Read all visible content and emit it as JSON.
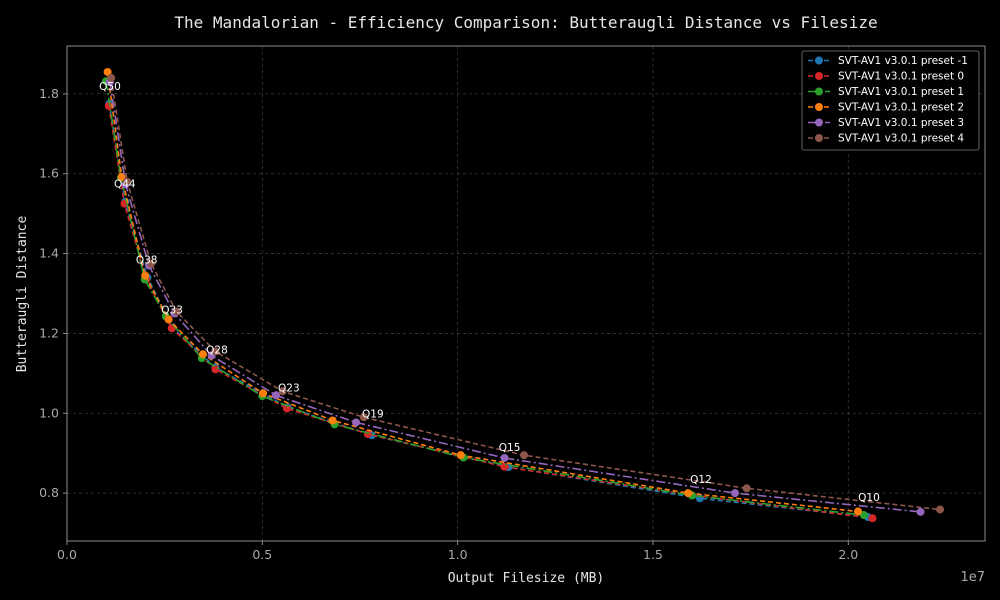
{
  "chart_data": {
    "type": "line",
    "title": "The Mandalorian - Efficiency Comparison: Butteraugli Distance vs Filesize",
    "xlabel": "Output Filesize (MB)",
    "ylabel": "Butteraugli Distance",
    "x_exponent_label": "1e7",
    "xlim": [
      0,
      23500000
    ],
    "ylim": [
      0.68,
      1.92
    ],
    "x_ticks": [
      0,
      5000000,
      10000000,
      15000000,
      20000000
    ],
    "x_tick_labels": [
      "0.0",
      "0.5",
      "1.0",
      "1.5",
      "2.0"
    ],
    "y_ticks": [
      0.8,
      1.0,
      1.2,
      1.4,
      1.6,
      1.8
    ],
    "y_tick_labels": [
      "0.8",
      "1.0",
      "1.2",
      "1.4",
      "1.6",
      "1.8"
    ],
    "grid": true,
    "legend_position": "top-right",
    "series": [
      {
        "name": "SVT-AV1 v3.0.1 preset -1",
        "color": "#1f77b4",
        "dash": "5 3",
        "x": [
          1080000,
          1490000,
          2060000,
          2700000,
          3800000,
          5650000,
          7800000,
          11300000,
          16200000,
          20500000
        ],
        "y": [
          1.775,
          1.53,
          1.34,
          1.215,
          1.115,
          1.015,
          0.945,
          0.865,
          0.787,
          0.74
        ]
      },
      {
        "name": "SVT-AV1 v3.0.1 preset 0",
        "color": "#d62728",
        "dash": "5 3",
        "x": [
          1070000,
          1470000,
          2030000,
          2680000,
          3800000,
          5630000,
          7700000,
          11200000,
          16000000,
          20620000
        ],
        "y": [
          1.77,
          1.525,
          1.335,
          1.213,
          1.11,
          1.012,
          0.948,
          0.866,
          0.795,
          0.737
        ]
      },
      {
        "name": "SVT-AV1 v3.0.1 preset 1",
        "color": "#2ca02c",
        "dash": "9 3 2 3",
        "x": [
          1000000,
          1380000,
          1990000,
          2530000,
          3450000,
          5000000,
          6850000,
          10150000,
          16000000,
          20400000
        ],
        "y": [
          1.832,
          1.59,
          1.335,
          1.243,
          1.138,
          1.043,
          0.972,
          0.889,
          0.794,
          0.745
        ]
      },
      {
        "name": "SVT-AV1 v3.0.1 preset 2",
        "color": "#ff7f0e",
        "dash": "5 3",
        "x": [
          1040000,
          1400000,
          2000000,
          2600000,
          3480000,
          5020000,
          6800000,
          10080000,
          15900000,
          20250000
        ],
        "y": [
          1.855,
          1.592,
          1.345,
          1.235,
          1.148,
          1.05,
          0.982,
          0.895,
          0.8,
          0.754
        ]
      },
      {
        "name": "SVT-AV1 v3.0.1 preset 3",
        "color": "#9467bd",
        "dash": "9 3 2 3",
        "x": [
          1100000,
          1500000,
          2100000,
          2750000,
          3700000,
          5350000,
          7400000,
          11200000,
          17100000,
          21850000
        ],
        "y": [
          1.83,
          1.573,
          1.37,
          1.25,
          1.145,
          1.045,
          0.977,
          0.888,
          0.8,
          0.753
        ]
      },
      {
        "name": "SVT-AV1 v3.0.1 preset 4",
        "color": "#8c564b",
        "dash": "5 3",
        "x": [
          1130000,
          1540000,
          2150000,
          2800000,
          3800000,
          5520000,
          7600000,
          11700000,
          17400000,
          22350000
        ],
        "y": [
          1.84,
          1.58,
          1.375,
          1.255,
          1.155,
          1.055,
          0.99,
          0.895,
          0.812,
          0.759
        ]
      }
    ],
    "annotations": [
      {
        "text": "Q50",
        "x": 1100000,
        "y": 1.81
      },
      {
        "text": "Q44",
        "x": 1480000,
        "y": 1.565
      },
      {
        "text": "Q38",
        "x": 2040000,
        "y": 1.375
      },
      {
        "text": "Q33",
        "x": 2690000,
        "y": 1.25
      },
      {
        "text": "Q28",
        "x": 3840000,
        "y": 1.15
      },
      {
        "text": "Q23",
        "x": 5680000,
        "y": 1.055
      },
      {
        "text": "Q19",
        "x": 7830000,
        "y": 0.99
      },
      {
        "text": "Q15",
        "x": 11330000,
        "y": 0.905
      },
      {
        "text": "Q12",
        "x": 16230000,
        "y": 0.825
      },
      {
        "text": "Q10",
        "x": 20530000,
        "y": 0.78
      }
    ]
  }
}
